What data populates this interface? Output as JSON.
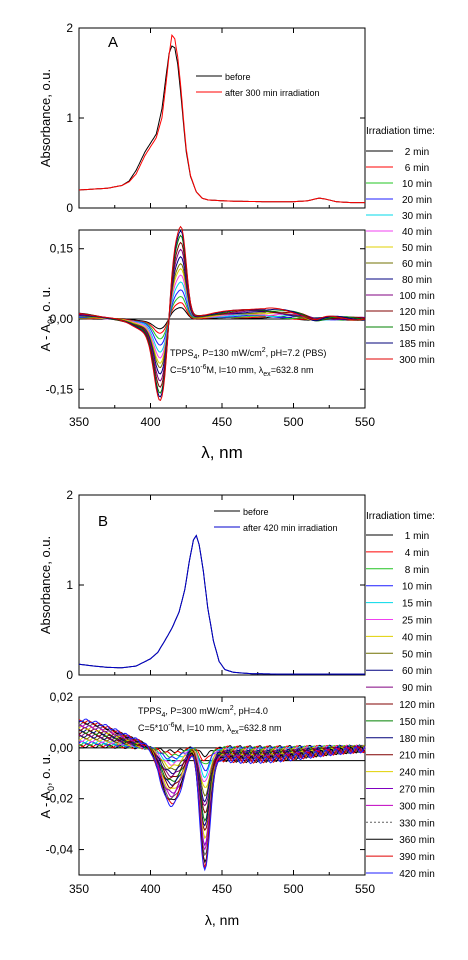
{
  "chart_data": [
    {
      "panel": "A",
      "type": "line",
      "ylabel": "Absorbance, o.u.",
      "xlim": [
        350,
        550
      ],
      "ylim": [
        0,
        2
      ],
      "yticks": [
        "0",
        "1",
        "2"
      ],
      "legend": [
        "before",
        "after 300 min irradiation"
      ],
      "series": [
        {
          "name": "before",
          "color": "#000000",
          "x": [
            350,
            370,
            380,
            385,
            390,
            393,
            396,
            400,
            404,
            408,
            411,
            413,
            415,
            417,
            419,
            421,
            423,
            425,
            428,
            432,
            436,
            440,
            445,
            450,
            460,
            480,
            500,
            510,
            515,
            518,
            522,
            530,
            540,
            550
          ],
          "y": [
            0.2,
            0.22,
            0.25,
            0.3,
            0.42,
            0.52,
            0.62,
            0.72,
            0.82,
            1.1,
            1.48,
            1.72,
            1.8,
            1.78,
            1.6,
            1.3,
            0.95,
            0.62,
            0.35,
            0.18,
            0.11,
            0.09,
            0.085,
            0.08,
            0.075,
            0.07,
            0.07,
            0.08,
            0.1,
            0.11,
            0.1,
            0.07,
            0.06,
            0.06
          ]
        },
        {
          "name": "after 300 min irradiation",
          "color": "#ff0000",
          "x": [
            350,
            370,
            380,
            385,
            390,
            393,
            396,
            400,
            404,
            408,
            411,
            413,
            415,
            417,
            419,
            421,
            423,
            425,
            428,
            432,
            436,
            440,
            445,
            450,
            460,
            480,
            500,
            510,
            515,
            518,
            522,
            530,
            540,
            550
          ],
          "y": [
            0.2,
            0.22,
            0.25,
            0.29,
            0.38,
            0.48,
            0.58,
            0.68,
            0.78,
            1.0,
            1.4,
            1.7,
            1.92,
            1.88,
            1.68,
            1.38,
            1.0,
            0.65,
            0.36,
            0.18,
            0.11,
            0.09,
            0.085,
            0.08,
            0.075,
            0.07,
            0.07,
            0.08,
            0.1,
            0.11,
            0.1,
            0.07,
            0.06,
            0.06
          ]
        }
      ]
    },
    {
      "panel": "A",
      "type": "line",
      "xlabel": "λ, nm",
      "ylabel": "A - A0, o. u.",
      "xlim": [
        350,
        550
      ],
      "ylim": [
        -0.19,
        0.19
      ],
      "xticks": [
        "350",
        "400",
        "450",
        "500",
        "550"
      ],
      "yticks": [
        "-0,15",
        "0,00",
        "0,15"
      ],
      "legend_title": "Irradiation time:",
      "annotation_line1": "TPPS4, P=130 mW/cm2, pH=7.2 (PBS)",
      "annotation_line2": "C=5*10-6M, l=10 mm, λex=632.8 nm",
      "series": [
        {
          "name": "2 min",
          "color": "#000000",
          "scale": 0.12
        },
        {
          "name": "6 min",
          "color": "#ff0000",
          "scale": 0.18
        },
        {
          "name": "10 min",
          "color": "#22c422",
          "scale": 0.25
        },
        {
          "name": "20 min",
          "color": "#1c1cff",
          "scale": 0.32
        },
        {
          "name": "30 min",
          "color": "#00d8e8",
          "scale": 0.4
        },
        {
          "name": "40 min",
          "color": "#f040f0",
          "scale": 0.47
        },
        {
          "name": "50 min",
          "color": "#e0d000",
          "scale": 0.54
        },
        {
          "name": "60 min",
          "color": "#707000",
          "scale": 0.6
        },
        {
          "name": "80 min",
          "color": "#000080",
          "scale": 0.68
        },
        {
          "name": "100 min",
          "color": "#800080",
          "scale": 0.76
        },
        {
          "name": "120 min",
          "color": "#800000",
          "scale": 0.83
        },
        {
          "name": "150 min",
          "color": "#008000",
          "scale": 0.9
        },
        {
          "name": "185 min",
          "color": "#00007a",
          "scale": 0.95
        },
        {
          "name": "300 min",
          "color": "#e00000",
          "scale": 1.0
        }
      ]
    },
    {
      "panel": "B",
      "type": "line",
      "ylabel": "Absorbance, o.u.",
      "xlim": [
        350,
        550
      ],
      "ylim": [
        0,
        2
      ],
      "yticks": [
        "0",
        "1",
        "2"
      ],
      "legend": [
        "before",
        "after 420 min irradiation"
      ],
      "series": [
        {
          "name": "before",
          "color": "#000000",
          "x": [
            350,
            360,
            370,
            380,
            390,
            400,
            405,
            410,
            415,
            420,
            424,
            427,
            430,
            432,
            434,
            437,
            440,
            444,
            448,
            452,
            458,
            470,
            490,
            520,
            550
          ],
          "y": [
            0.12,
            0.1,
            0.085,
            0.08,
            0.1,
            0.18,
            0.25,
            0.38,
            0.52,
            0.7,
            0.95,
            1.25,
            1.5,
            1.55,
            1.45,
            1.15,
            0.75,
            0.38,
            0.15,
            0.06,
            0.03,
            0.015,
            0.01,
            0.01,
            0.01
          ]
        },
        {
          "name": "after 420 min irradiation",
          "color": "#0000cc",
          "x": [
            350,
            360,
            370,
            380,
            390,
            400,
            405,
            410,
            415,
            420,
            424,
            427,
            430,
            432,
            434,
            437,
            440,
            444,
            448,
            452,
            458,
            470,
            490,
            520,
            550
          ],
          "y": [
            0.12,
            0.1,
            0.085,
            0.08,
            0.1,
            0.18,
            0.25,
            0.38,
            0.52,
            0.7,
            0.95,
            1.25,
            1.5,
            1.55,
            1.45,
            1.15,
            0.75,
            0.38,
            0.15,
            0.06,
            0.03,
            0.015,
            0.01,
            0.01,
            0.01
          ]
        }
      ]
    },
    {
      "panel": "B",
      "type": "line",
      "xlabel": "λ, nm",
      "ylabel": "A - A0, o. u.",
      "xlim": [
        350,
        550
      ],
      "ylim": [
        -0.05,
        0.02
      ],
      "xticks": [
        "350",
        "400",
        "450",
        "500",
        "550"
      ],
      "yticks": [
        "-0,04",
        "-0,02",
        "0,00",
        "0,02"
      ],
      "legend_title": "Irradiation time:",
      "annotation_line1": "TPPS4, P=300 mW/cm2, pH=4.0",
      "annotation_line2": "C=5*10-6M, l=10 mm, λex=632.8 nm",
      "series": [
        {
          "name": "1 min",
          "color": "#000000",
          "scale": 0.06
        },
        {
          "name": "4 min",
          "color": "#ff0000",
          "scale": 0.1
        },
        {
          "name": "8 min",
          "color": "#22c422",
          "scale": 0.14
        },
        {
          "name": "10 min",
          "color": "#1c1cff",
          "scale": 0.18
        },
        {
          "name": "15 min",
          "color": "#00d8e8",
          "scale": 0.23
        },
        {
          "name": "25 min",
          "color": "#f040f0",
          "scale": 0.28
        },
        {
          "name": "40 min",
          "color": "#e0d000",
          "scale": 0.33
        },
        {
          "name": "50 min",
          "color": "#707000",
          "scale": 0.38
        },
        {
          "name": "60 min",
          "color": "#000080",
          "scale": 0.43
        },
        {
          "name": "90 min",
          "color": "#800080",
          "scale": 0.48
        },
        {
          "name": "120 min",
          "color": "#800000",
          "scale": 0.53
        },
        {
          "name": "150 min",
          "color": "#008000",
          "scale": 0.58
        },
        {
          "name": "180 min",
          "color": "#00007a",
          "scale": 0.63
        },
        {
          "name": "210 min",
          "color": "#800000",
          "scale": 0.68
        },
        {
          "name": "240 min",
          "color": "#e0d000",
          "scale": 0.73
        },
        {
          "name": "270 min",
          "color": "#8000c0",
          "scale": 0.78
        },
        {
          "name": "300 min",
          "color": "#c000c0",
          "scale": 0.83
        },
        {
          "name": "330 min",
          "color": "#606060",
          "scale": 0.88
        },
        {
          "name": "360 min",
          "color": "#000000",
          "scale": 0.92
        },
        {
          "name": "390 min",
          "color": "#e00000",
          "scale": 0.96
        },
        {
          "name": "420 min",
          "color": "#1c1cff",
          "scale": 1.0
        }
      ]
    }
  ],
  "panel_labels": [
    "A",
    "B"
  ],
  "units": {
    "ylabel_sub": "0",
    "exponent_cm": "2",
    "exponent_c": "-6",
    "sub_tpps": "4",
    "sub_ex": "ex"
  }
}
